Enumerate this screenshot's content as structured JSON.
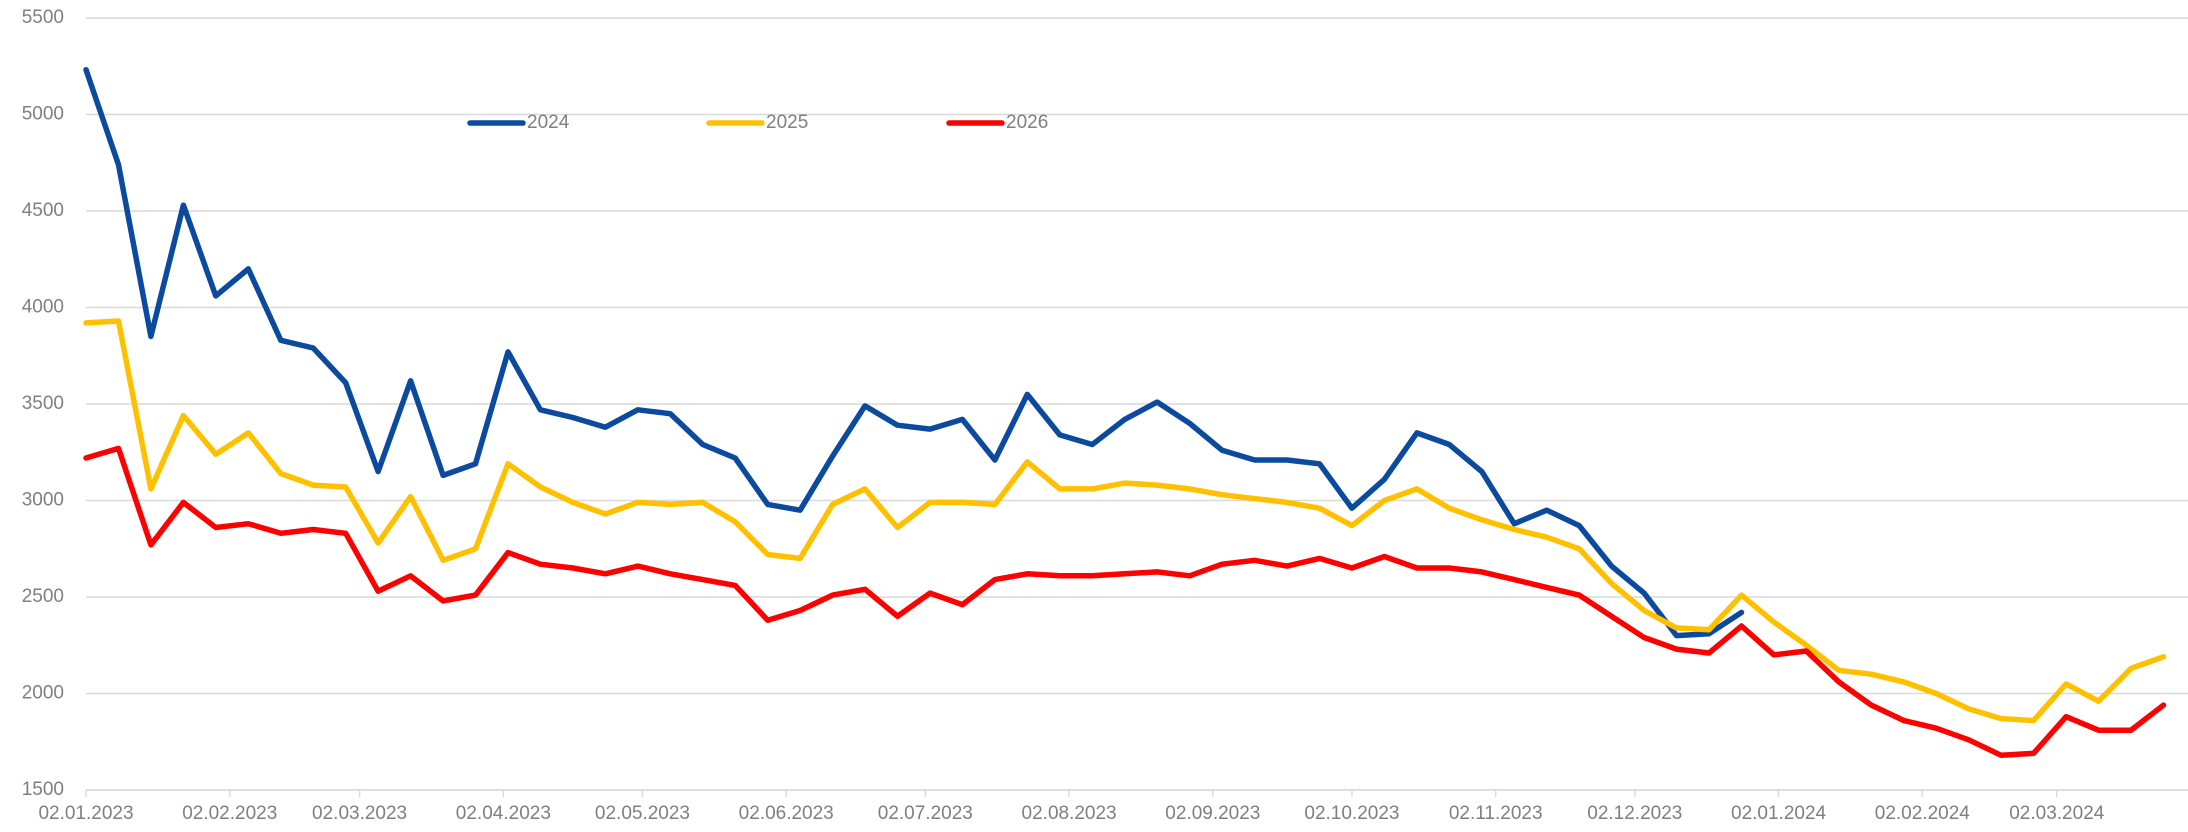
{
  "chart_data": {
    "type": "line",
    "x": [
      "02.01.2023",
      "09.01.2023",
      "16.01.2023",
      "23.01.2023",
      "30.01.2023",
      "06.02.2023",
      "13.02.2023",
      "20.02.2023",
      "27.02.2023",
      "06.03.2023",
      "13.03.2023",
      "20.03.2023",
      "27.03.2023",
      "03.04.2023",
      "10.04.2023",
      "17.04.2023",
      "24.04.2023",
      "01.05.2023",
      "08.05.2023",
      "15.05.2023",
      "22.05.2023",
      "29.05.2023",
      "05.06.2023",
      "12.06.2023",
      "19.06.2023",
      "26.06.2023",
      "03.07.2023",
      "10.07.2023",
      "17.07.2023",
      "24.07.2023",
      "31.07.2023",
      "07.08.2023",
      "14.08.2023",
      "21.08.2023",
      "28.08.2023",
      "04.09.2023",
      "11.09.2023",
      "18.09.2023",
      "25.09.2023",
      "02.10.2023",
      "09.10.2023",
      "16.10.2023",
      "23.10.2023",
      "30.10.2023",
      "06.11.2023",
      "13.11.2023",
      "20.11.2023",
      "27.11.2023",
      "04.12.2023",
      "11.12.2023",
      "18.12.2023",
      "25.12.2023",
      "01.01.2024",
      "08.01.2024",
      "15.01.2024",
      "22.01.2024",
      "29.01.2024",
      "05.02.2024",
      "12.02.2024",
      "19.02.2024",
      "26.02.2024",
      "04.03.2024",
      "11.03.2024",
      "18.03.2024",
      "25.03.2024"
    ],
    "series": [
      {
        "name": "2024",
        "color": "#0b4a9e",
        "values": [
          5232,
          4740,
          3850,
          4530,
          4060,
          4200,
          3830,
          3790,
          3610,
          3150,
          3620,
          3130,
          3190,
          3770,
          3470,
          3430,
          3380,
          3470,
          3450,
          3290,
          3220,
          2980,
          2950,
          3230,
          3490,
          3390,
          3370,
          3420,
          3210,
          3550,
          3340,
          3290,
          3420,
          3510,
          3400,
          3260,
          3210,
          3210,
          3190,
          2960,
          3110,
          3350,
          3290,
          3150,
          2880,
          2950,
          2870,
          2660,
          2520,
          2300,
          2310,
          2420,
          null,
          null,
          null,
          null,
          null,
          null,
          null,
          null,
          null,
          null,
          null,
          null,
          null
        ]
      },
      {
        "name": "2025",
        "color": "#ffc000",
        "values": [
          3920,
          3930,
          3060,
          3440,
          3240,
          3350,
          3140,
          3080,
          3070,
          2780,
          3020,
          2690,
          2750,
          3190,
          3070,
          2990,
          2930,
          2990,
          2980,
          2990,
          2890,
          2720,
          2700,
          2980,
          3060,
          2860,
          2990,
          2990,
          2980,
          3200,
          3060,
          3060,
          3090,
          3080,
          3060,
          3030,
          3010,
          2990,
          2960,
          2870,
          3000,
          3060,
          2960,
          2900,
          2850,
          2810,
          2750,
          2570,
          2430,
          2340,
          2330,
          2510,
          2370,
          2250,
          2120,
          2100,
          2060,
          2000,
          1920,
          1870,
          1860,
          2050,
          1960,
          2130,
          2190
        ]
      },
      {
        "name": "2026",
        "color": "#ff0000",
        "values": [
          3220,
          3270,
          2770,
          2990,
          2860,
          2880,
          2830,
          2850,
          2830,
          2530,
          2610,
          2480,
          2510,
          2730,
          2670,
          2650,
          2620,
          2660,
          2620,
          2590,
          2560,
          2380,
          2430,
          2510,
          2540,
          2400,
          2520,
          2460,
          2590,
          2620,
          2610,
          2610,
          2620,
          2630,
          2610,
          2670,
          2690,
          2660,
          2700,
          2650,
          2710,
          2650,
          2650,
          2630,
          2590,
          2550,
          2510,
          2400,
          2290,
          2230,
          2210,
          2350,
          2200,
          2220,
          2060,
          1940,
          1860,
          1820,
          1760,
          1680,
          1690,
          1880,
          1810,
          1810,
          1940
        ]
      }
    ],
    "xlim": [
      "02.01.2023",
      "29.03.2024"
    ],
    "xticks": [
      "02.01.2023",
      "02.02.2023",
      "02.03.2023",
      "02.04.2023",
      "02.05.2023",
      "02.06.2023",
      "02.07.2023",
      "02.08.2023",
      "02.09.2023",
      "02.10.2023",
      "02.11.2023",
      "02.12.2023",
      "02.01.2024",
      "02.02.2024",
      "02.03.2024"
    ],
    "ylim": [
      1500,
      5500
    ],
    "yticks": [
      1500,
      2000,
      2500,
      3000,
      3500,
      4000,
      4500,
      5000,
      5500
    ],
    "grid": true,
    "legend": "top"
  }
}
